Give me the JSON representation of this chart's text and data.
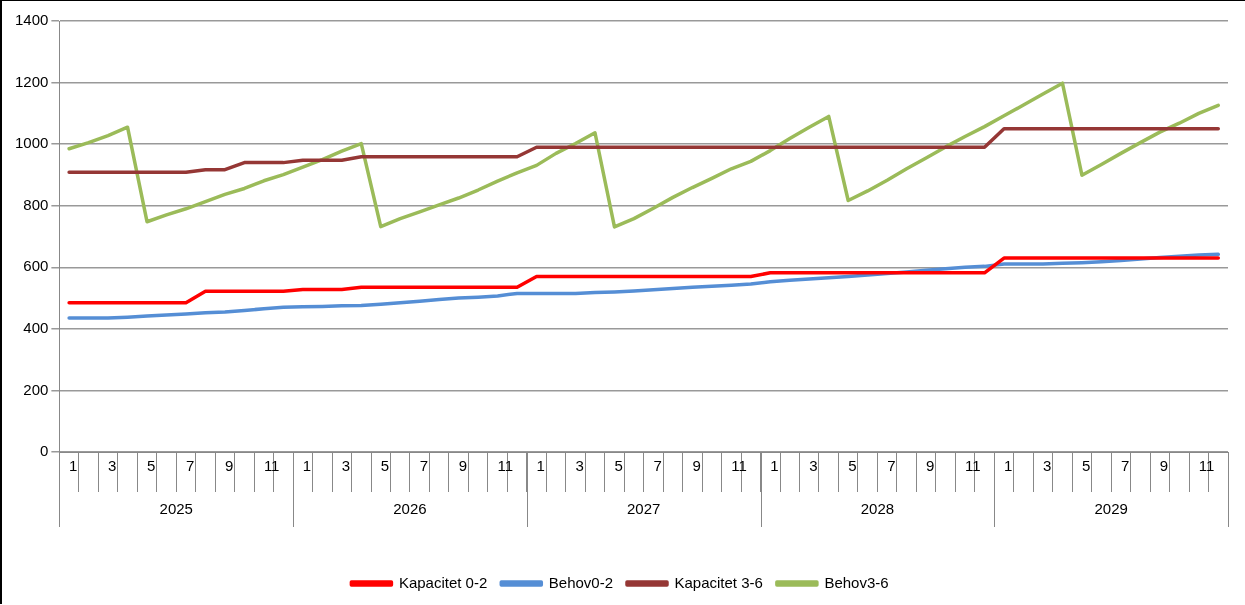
{
  "chart_data": {
    "type": "line",
    "categories": [
      "1",
      null,
      "3",
      null,
      "5",
      null,
      "7",
      null,
      "9",
      null,
      "11",
      null,
      "1",
      null,
      "3",
      null,
      "5",
      null,
      "7",
      null,
      "9",
      null,
      "11",
      null,
      "1",
      null,
      "3",
      null,
      "5",
      null,
      "7",
      null,
      "9",
      null,
      "11",
      null,
      "1",
      null,
      "3",
      null,
      "5",
      null,
      "7",
      null,
      "9",
      null,
      "11",
      null,
      "1",
      null,
      "3",
      null,
      "5",
      null,
      "7",
      null,
      "9",
      null,
      "11",
      null
    ],
    "annotations": [
      "2025",
      "2026",
      "2027",
      "2028",
      "2029"
    ],
    "series": [
      {
        "name": "Kapacitet 0-2",
        "color": "#ff0000",
        "values": [
          485,
          485,
          485,
          485,
          485,
          485,
          485,
          522,
          522,
          522,
          522,
          522,
          528,
          528,
          528,
          535,
          535,
          535,
          535,
          535,
          535,
          535,
          535,
          535,
          570,
          570,
          570,
          570,
          570,
          570,
          570,
          570,
          570,
          570,
          570,
          570,
          582,
          582,
          582,
          582,
          582,
          582,
          582,
          582,
          582,
          582,
          582,
          582,
          630,
          630,
          630,
          630,
          630,
          630,
          630,
          630,
          630,
          630,
          630,
          630
        ]
      },
      {
        "name": "Behov0-2",
        "color": "#558ed5",
        "values": [
          435,
          435,
          435,
          438,
          442,
          445,
          448,
          452,
          455,
          460,
          465,
          470,
          472,
          473,
          475,
          476,
          480,
          485,
          490,
          495,
          500,
          503,
          507,
          515,
          515,
          515,
          515,
          518,
          520,
          523,
          527,
          531,
          535,
          538,
          542,
          546,
          553,
          558,
          562,
          566,
          570,
          575,
          580,
          585,
          590,
          595,
          600,
          603,
          611,
          611,
          611,
          613,
          615,
          618,
          622,
          627,
          632,
          636,
          640,
          642
        ]
      },
      {
        "name": "Kapacitet 3-6",
        "color": "#953735",
        "values": [
          909,
          909,
          909,
          909,
          909,
          909,
          909,
          917,
          917,
          940,
          940,
          940,
          948,
          948,
          948,
          959,
          959,
          959,
          959,
          959,
          959,
          959,
          959,
          959,
          990,
          990,
          990,
          990,
          990,
          990,
          990,
          990,
          990,
          990,
          990,
          990,
          990,
          990,
          990,
          990,
          990,
          990,
          990,
          990,
          990,
          990,
          990,
          990,
          1050,
          1050,
          1050,
          1050,
          1050,
          1050,
          1050,
          1050,
          1050,
          1050,
          1050,
          1050
        ]
      },
      {
        "name": "Behov3-6",
        "color": "#9bbb59",
        "values": [
          985,
          1005,
          1028,
          1055,
          748,
          770,
          790,
          813,
          837,
          856,
          881,
          901,
          925,
          950,
          977,
          1002,
          732,
          758,
          780,
          803,
          825,
          851,
          880,
          907,
          931,
          970,
          1002,
          1037,
          731,
          758,
          792,
          827,
          859,
          889,
          920,
          944,
          979,
          1018,
          1055,
          1090,
          817,
          848,
          883,
          920,
          955,
          991,
          1025,
          1057,
          1092,
          1127,
          1163,
          1198,
          899,
          934,
          970,
          1005,
          1039,
          1068,
          1100,
          1126
        ]
      }
    ],
    "ylim": [
      0,
      1400
    ],
    "yticks": [
      0,
      200,
      400,
      600,
      800,
      1000,
      1200,
      1400
    ],
    "grid": "y",
    "legend": "bottom",
    "marker": "none",
    "line_style": "solid"
  }
}
